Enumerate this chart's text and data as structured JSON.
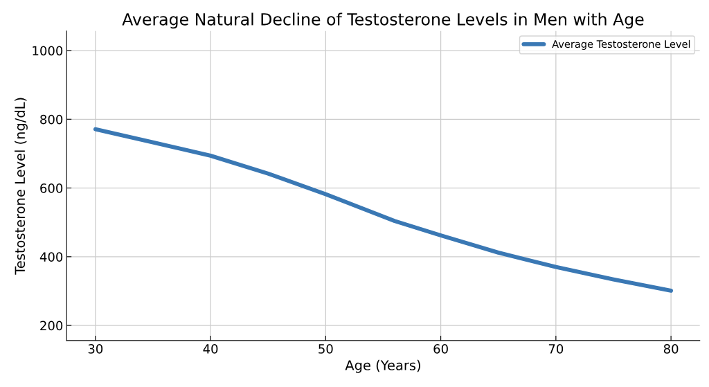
{
  "chart_data": {
    "type": "line",
    "title": "Average Natural Decline of Testosterone Levels in Men with Age",
    "xlabel": "Age (Years)",
    "ylabel": "Testosterone Level (ng/dL)",
    "x": [
      30,
      35,
      40,
      45,
      50,
      56,
      60,
      65,
      70,
      75,
      80
    ],
    "series": [
      {
        "name": "Average Testosterone Level",
        "color": "#3a78b4",
        "values": [
          771,
          733,
          694,
          642,
          582,
          504,
          462,
          412,
          370,
          334,
          301
        ]
      }
    ],
    "xlim": [
      27.5,
      82.5
    ],
    "xticks": [
      30,
      40,
      50,
      60,
      70,
      80
    ],
    "ylim": [
      156,
      1057
    ],
    "yticks": [
      200,
      400,
      600,
      800,
      1000
    ],
    "grid": true,
    "legend": "top right",
    "marker": "none",
    "line_style": "solid"
  }
}
